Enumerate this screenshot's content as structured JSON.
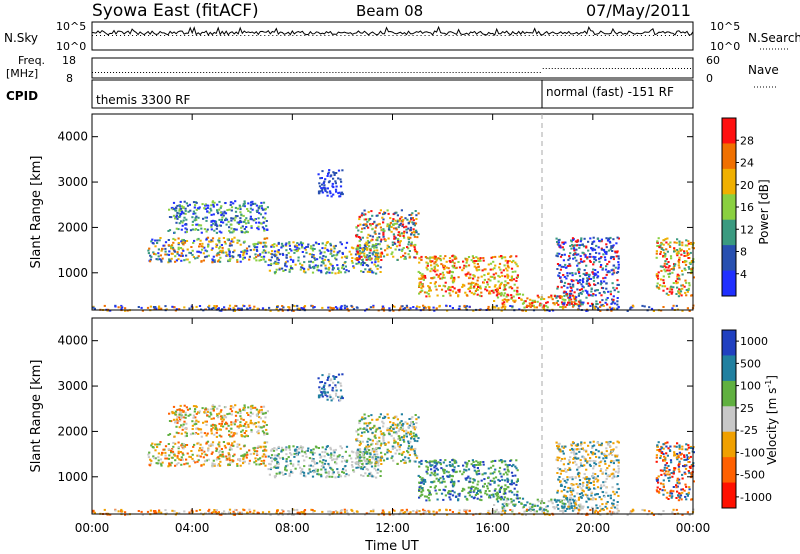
{
  "header": {
    "station": "Syowa East (fitACF)",
    "beam": "Beam 08",
    "date": "07/May/2011"
  },
  "noise_panel": {
    "left_label": "N.Sky",
    "right_label": "N.Search",
    "ticks_top": "10^5",
    "ticks_bottom": "10^0"
  },
  "freq_panel": {
    "left_label_1": "Freq.",
    "left_label_2": "[MHz]",
    "left_tick_top": "18",
    "left_tick_bottom": "8",
    "right_label": "Nave",
    "right_tick_top": "60",
    "right_tick_bottom": "0"
  },
  "cpid_panel": {
    "label": "CPID",
    "mode_1": "themis 3300 RF",
    "mode_2": "normal (fast) -151 RF"
  },
  "x_axis": {
    "label": "Time UT",
    "ticks": [
      "00:00",
      "04:00",
      "08:00",
      "12:00",
      "16:00",
      "20:00",
      "00:00"
    ]
  },
  "power_panel": {
    "ylabel": "Slant Range [km]",
    "yticks": [
      "1000",
      "2000",
      "3000",
      "4000"
    ],
    "colorbar_label": "Power [dB]",
    "colorbar_ticks": [
      "4",
      "8",
      "12",
      "16",
      "20",
      "24",
      "28"
    ]
  },
  "velocity_panel": {
    "ylabel": "Slant Range [km]",
    "yticks": [
      "1000",
      "2000",
      "3000",
      "4000"
    ],
    "colorbar_label": "Velocity [m s",
    "colorbar_label_sup": "-1",
    "colorbar_label_end": "]",
    "colorbar_ticks": [
      "1000",
      "500",
      "100",
      "25",
      "-25",
      "-100",
      "-500",
      "-1000"
    ]
  },
  "chart_data": {
    "type": "heatmap",
    "x_range_hours": [
      0,
      24
    ],
    "y_range_km": [
      180,
      4500
    ],
    "mode_change_hour": 18,
    "power_colors": [
      "#2030ff",
      "#2850b0",
      "#3a9a80",
      "#8ad040",
      "#f0b000",
      "#f07000",
      "#ff1010"
    ],
    "velocity_colors": [
      "#2040c0",
      "#2080a0",
      "#60b040",
      "#c8c8c8",
      "#f0a000",
      "#ff6000",
      "#ff1000"
    ],
    "echo_regions": [
      {
        "t0": 2.2,
        "t1": 7.0,
        "r0": 1250,
        "r1": 1800,
        "power": [
          0,
          1,
          2,
          3,
          4,
          5
        ],
        "velocity": [
          3,
          4,
          5,
          2
        ]
      },
      {
        "t0": 3.0,
        "t1": 7.0,
        "r0": 1900,
        "r1": 2600,
        "power": [
          0,
          1,
          2,
          3
        ],
        "velocity": [
          4,
          5,
          3,
          2
        ]
      },
      {
        "t0": 7.0,
        "t1": 11.5,
        "r0": 1000,
        "r1": 1700,
        "power": [
          0,
          1,
          2,
          3,
          4
        ],
        "velocity": [
          3,
          3,
          2,
          1
        ]
      },
      {
        "t0": 10.5,
        "t1": 13.0,
        "r0": 1300,
        "r1": 2400,
        "power": [
          1,
          2,
          3,
          4,
          5,
          6
        ],
        "velocity": [
          1,
          2,
          3,
          4
        ]
      },
      {
        "t0": 13.0,
        "t1": 17.0,
        "r0": 500,
        "r1": 1400,
        "power": [
          3,
          4,
          5,
          6
        ],
        "velocity": [
          2,
          1,
          0,
          2
        ]
      },
      {
        "t0": 9.0,
        "t1": 10.0,
        "r0": 2700,
        "r1": 3300,
        "power": [
          0,
          1
        ],
        "velocity": [
          0,
          1,
          3
        ]
      },
      {
        "t0": 16.0,
        "t1": 19.5,
        "r0": 250,
        "r1": 550,
        "power": [
          4,
          5,
          6,
          3
        ],
        "velocity": [
          1,
          2,
          3
        ]
      },
      {
        "t0": 18.5,
        "t1": 21.0,
        "r0": 300,
        "r1": 1800,
        "power": [
          0,
          1,
          2,
          6
        ],
        "velocity": [
          3,
          4,
          1
        ]
      },
      {
        "t0": 22.5,
        "t1": 24.0,
        "r0": 500,
        "r1": 1800,
        "power": [
          2,
          3,
          4,
          5,
          6
        ],
        "velocity": [
          0,
          1,
          4,
          5,
          6
        ]
      },
      {
        "t0": 0.0,
        "t1": 24.0,
        "r0": 180,
        "r1": 300,
        "power": [
          0,
          1,
          4,
          5
        ],
        "velocity": [
          3,
          4,
          5
        ]
      }
    ]
  }
}
